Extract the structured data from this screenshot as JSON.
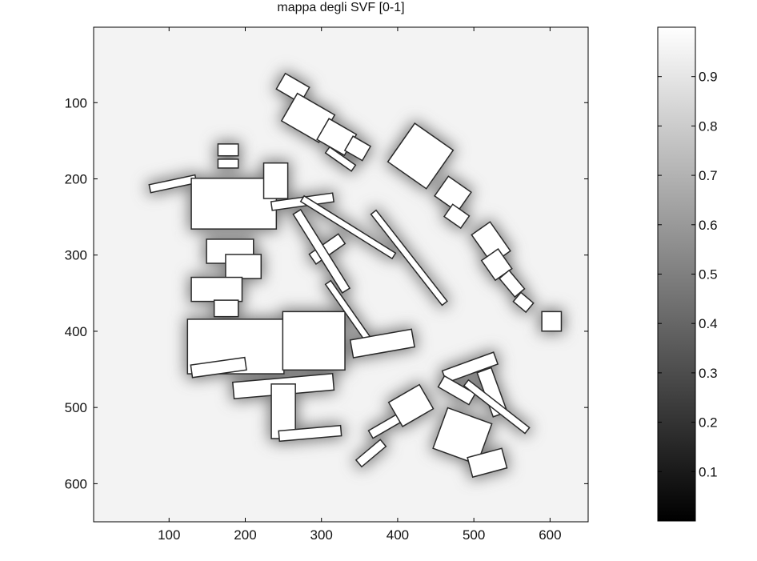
{
  "chart_data": {
    "type": "heatmap",
    "title": "mappa degli SVF [0-1]",
    "xlabel": "",
    "ylabel": "",
    "x_range": [
      1,
      650
    ],
    "y_range": [
      1,
      650
    ],
    "y_reversed": true,
    "x_ticks": [
      100,
      200,
      300,
      400,
      500,
      600
    ],
    "y_ticks": [
      100,
      200,
      300,
      400,
      500,
      600
    ],
    "colormap": "gray",
    "colorbar": {
      "range": [
        0,
        1
      ],
      "ticks": [
        0.1,
        0.2,
        0.3,
        0.4,
        0.5,
        0.6,
        0.7,
        0.8,
        0.9
      ],
      "tick_labels": [
        "0.1",
        "0.2",
        "0.3",
        "0.4",
        "0.5",
        "0.6",
        "0.7",
        "0.8",
        "0.9"
      ]
    },
    "background_value": 0.97,
    "building_value": 1.0,
    "buildings": [
      {
        "x": 245,
        "y": 70,
        "w": 35,
        "h": 22,
        "rot": 30
      },
      {
        "x": 255,
        "y": 100,
        "w": 55,
        "h": 40,
        "rot": 30
      },
      {
        "x": 300,
        "y": 130,
        "w": 40,
        "h": 30,
        "rot": 30
      },
      {
        "x": 335,
        "y": 150,
        "w": 25,
        "h": 20,
        "rot": 30
      },
      {
        "x": 305,
        "y": 170,
        "w": 40,
        "h": 8,
        "rot": 35
      },
      {
        "x": 400,
        "y": 140,
        "w": 60,
        "h": 60,
        "rot": 35
      },
      {
        "x": 455,
        "y": 205,
        "w": 35,
        "h": 30,
        "rot": 35
      },
      {
        "x": 465,
        "y": 240,
        "w": 25,
        "h": 18,
        "rot": 35
      },
      {
        "x": 500,
        "y": 270,
        "w": 45,
        "h": 28,
        "rot": 55
      },
      {
        "x": 515,
        "y": 300,
        "w": 30,
        "h": 25,
        "rot": 55
      },
      {
        "x": 535,
        "y": 330,
        "w": 30,
        "h": 15,
        "rot": 50
      },
      {
        "x": 555,
        "y": 355,
        "w": 20,
        "h": 14,
        "rot": 40
      },
      {
        "x": 590,
        "y": 375,
        "w": 24,
        "h": 24,
        "rot": 0
      },
      {
        "x": 75,
        "y": 202,
        "w": 60,
        "h": 9,
        "rot": -12
      },
      {
        "x": 165,
        "y": 155,
        "w": 25,
        "h": 14,
        "rot": 0
      },
      {
        "x": 165,
        "y": 175,
        "w": 25,
        "h": 10,
        "rot": 0
      },
      {
        "x": 130,
        "y": 200,
        "w": 110,
        "h": 65,
        "rot": 0
      },
      {
        "x": 225,
        "y": 180,
        "w": 30,
        "h": 45,
        "rot": 0
      },
      {
        "x": 235,
        "y": 225,
        "w": 80,
        "h": 10,
        "rot": -8
      },
      {
        "x": 265,
        "y": 260,
        "w": 140,
        "h": 7,
        "rot": 32
      },
      {
        "x": 285,
        "y": 285,
        "w": 45,
        "h": 14,
        "rot": -35
      },
      {
        "x": 340,
        "y": 300,
        "w": 150,
        "h": 7,
        "rot": 52
      },
      {
        "x": 150,
        "y": 280,
        "w": 60,
        "h": 30,
        "rot": 0
      },
      {
        "x": 175,
        "y": 300,
        "w": 45,
        "h": 30,
        "rot": 0
      },
      {
        "x": 130,
        "y": 330,
        "w": 65,
        "h": 30,
        "rot": 0
      },
      {
        "x": 160,
        "y": 360,
        "w": 30,
        "h": 20,
        "rot": 0
      },
      {
        "x": 240,
        "y": 290,
        "w": 120,
        "h": 10,
        "rot": 58
      },
      {
        "x": 125,
        "y": 385,
        "w": 125,
        "h": 70,
        "rot": 0
      },
      {
        "x": 250,
        "y": 375,
        "w": 80,
        "h": 75,
        "rot": 0
      },
      {
        "x": 130,
        "y": 440,
        "w": 70,
        "h": 15,
        "rot": -8
      },
      {
        "x": 290,
        "y": 370,
        "w": 90,
        "h": 7,
        "rot": 55
      },
      {
        "x": 340,
        "y": 405,
        "w": 80,
        "h": 22,
        "rot": -10
      },
      {
        "x": 185,
        "y": 462,
        "w": 130,
        "h": 20,
        "rot": -5
      },
      {
        "x": 235,
        "y": 470,
        "w": 30,
        "h": 70,
        "rot": 0
      },
      {
        "x": 245,
        "y": 528,
        "w": 80,
        "h": 12,
        "rot": -5
      },
      {
        "x": 360,
        "y": 510,
        "w": 80,
        "h": 10,
        "rot": -30
      },
      {
        "x": 395,
        "y": 480,
        "w": 45,
        "h": 35,
        "rot": -30
      },
      {
        "x": 345,
        "y": 555,
        "w": 40,
        "h": 10,
        "rot": -40
      },
      {
        "x": 460,
        "y": 440,
        "w": 70,
        "h": 15,
        "rot": -20
      },
      {
        "x": 515,
        "y": 450,
        "w": 18,
        "h": 60,
        "rot": -20
      },
      {
        "x": 455,
        "y": 470,
        "w": 45,
        "h": 15,
        "rot": 30
      },
      {
        "x": 480,
        "y": 495,
        "w": 100,
        "h": 8,
        "rot": 38
      },
      {
        "x": 455,
        "y": 510,
        "w": 60,
        "h": 55,
        "rot": 20
      },
      {
        "x": 495,
        "y": 560,
        "w": 45,
        "h": 25,
        "rot": -15
      }
    ]
  }
}
